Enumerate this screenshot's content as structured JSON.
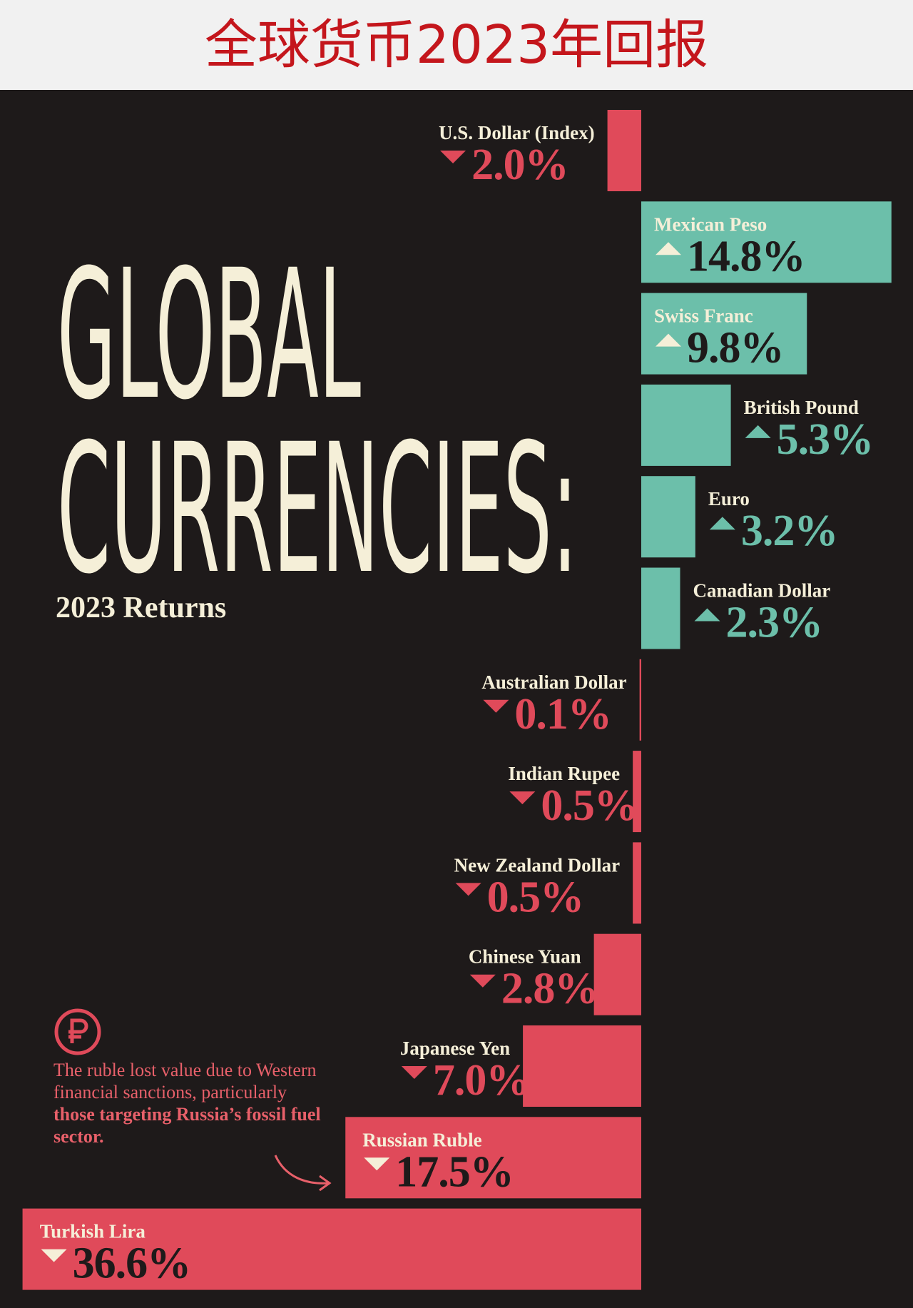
{
  "page_title": "全球货币2023年回报",
  "chart_data": {
    "type": "diverging-bar",
    "heading": [
      "GLOBAL",
      "CURRENCIES:"
    ],
    "subtitle": "2023 Returns",
    "categories": [
      "U.S. Dollar (Index)",
      "Mexican Peso",
      "Swiss Franc",
      "British Pound",
      "Euro",
      "Canadian Dollar",
      "Australian Dollar",
      "Indian Rupee",
      "New Zealand Dollar",
      "Chinese Yuan",
      "Japanese Yen",
      "Russian Ruble",
      "Turkish Lira"
    ],
    "values": [
      -2.0,
      14.8,
      9.8,
      5.3,
      3.2,
      2.3,
      -0.1,
      -0.5,
      -0.5,
      -2.8,
      -7.0,
      -17.5,
      -36.6
    ],
    "value_labels": [
      "2.0%",
      "14.8%",
      "9.8%",
      "5.3%",
      "3.2%",
      "2.3%",
      "0.1%",
      "0.5%",
      "0.5%",
      "2.8%",
      "7.0%",
      "17.5%",
      "36.6%"
    ],
    "colors": {
      "up": "#6cbfaa",
      "down": "#e04a5a"
    },
    "annotation": [
      "The ruble lost value due to Western financial sanctions, particularly ",
      "those targeting Russia’s fossil fuel sector."
    ]
  }
}
